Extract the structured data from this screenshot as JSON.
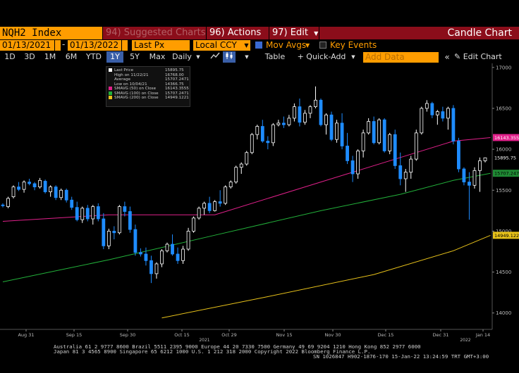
{
  "toolbar": {
    "ticker": "NQH2 Index",
    "suggested_charts": "94) Suggested Charts",
    "actions": "96) Actions",
    "edit": "97) Edit",
    "title": "Candle Chart"
  },
  "controls": {
    "date_from": "01/13/2021",
    "date_to": "01/13/2022",
    "price_field": "Last Px",
    "currency": "Local CCY",
    "mov_avgs_label": "Mov Avgs",
    "key_events_label": "Key Events"
  },
  "periods": [
    "1D",
    "3D",
    "1M",
    "6M",
    "YTD",
    "1Y",
    "5Y",
    "Max"
  ],
  "selected_period": "1Y",
  "frequency": "Daily",
  "table_label": "Table",
  "quick_add_label": "+ Quick-Add",
  "add_data_placeholder": "Add Data",
  "edit_chart_label": "Edit Chart",
  "legend": [
    {
      "label": "Last Price",
      "value": "15895.75",
      "color": "#ffffff"
    },
    {
      "label": "High on 11/22/21",
      "value": "16768.00",
      "color": ""
    },
    {
      "label": "Average",
      "value": "15707.2471",
      "color": ""
    },
    {
      "label": "Low on 10/04/21",
      "value": "14366.75",
      "color": ""
    },
    {
      "label": "SMAVG (50)  on Close",
      "value": "16143.3555",
      "color": "#e0208a"
    },
    {
      "label": "SMAVG (100) on Close",
      "value": "15707.2471",
      "color": "#22b03a"
    },
    {
      "label": "SMAVG (200) on Close",
      "value": "14949.1221",
      "color": "#e8c21a"
    }
  ],
  "chart_data": {
    "type": "candlestick",
    "y_range": [
      13800,
      17050
    ],
    "y_ticks": [
      14000,
      14500,
      15000,
      15500,
      16000,
      16500,
      17000
    ],
    "x_labels": [
      "Aug 31",
      "Sep 15",
      "Sep 30",
      "Oct 15",
      "Oct 29",
      "Nov 15",
      "Nov 30",
      "Dec 15",
      "Dec 31",
      "Jan 14"
    ],
    "year_labels": [
      {
        "after": "Oct 15",
        "text": "2021"
      },
      {
        "after": "Dec 31",
        "text": "2022"
      }
    ],
    "up_color": "#ffffff",
    "down_color": "#1e8cff",
    "candles": [
      [
        15320,
        15340,
        15290,
        15310
      ],
      [
        15300,
        15420,
        15280,
        15400
      ],
      [
        15420,
        15560,
        15400,
        15540
      ],
      [
        15540,
        15600,
        15490,
        15510
      ],
      [
        15510,
        15620,
        15470,
        15600
      ],
      [
        15600,
        15640,
        15560,
        15580
      ],
      [
        15580,
        15600,
        15500,
        15540
      ],
      [
        15540,
        15650,
        15520,
        15620
      ],
      [
        15610,
        15630,
        15460,
        15480
      ],
      [
        15480,
        15560,
        15420,
        15540
      ],
      [
        15540,
        15560,
        15380,
        15410
      ],
      [
        15410,
        15520,
        15380,
        15500
      ],
      [
        15500,
        15520,
        15350,
        15380
      ],
      [
        15380,
        15420,
        15260,
        15290
      ],
      [
        15290,
        15360,
        15120,
        15140
      ],
      [
        15140,
        15300,
        15100,
        15280
      ],
      [
        15280,
        15320,
        15120,
        15150
      ],
      [
        15150,
        15320,
        15080,
        15300
      ],
      [
        15300,
        15340,
        15120,
        15150
      ],
      [
        15150,
        15220,
        14780,
        14820
      ],
      [
        14820,
        15030,
        14780,
        15000
      ],
      [
        15000,
        15060,
        14900,
        14980
      ],
      [
        14980,
        15320,
        14960,
        15300
      ],
      [
        15300,
        15360,
        15180,
        15240
      ],
      [
        15240,
        15300,
        14980,
        15020
      ],
      [
        15020,
        15080,
        14700,
        14740
      ],
      [
        14740,
        14790,
        14690,
        14720
      ],
      [
        14720,
        14800,
        14580,
        14640
      ],
      [
        14640,
        14700,
        14366,
        14480
      ],
      [
        14480,
        14620,
        14420,
        14600
      ],
      [
        14600,
        14780,
        14560,
        14760
      ],
      [
        14760,
        14860,
        14740,
        14840
      ],
      [
        14840,
        14960,
        14700,
        14720
      ],
      [
        14720,
        14800,
        14600,
        14640
      ],
      [
        14640,
        14820,
        14600,
        14780
      ],
      [
        14780,
        15040,
        14760,
        15000
      ],
      [
        15000,
        15180,
        14980,
        15160
      ],
      [
        15160,
        15300,
        15140,
        15280
      ],
      [
        15280,
        15360,
        15200,
        15340
      ],
      [
        15340,
        15420,
        15220,
        15250
      ],
      [
        15250,
        15380,
        15240,
        15360
      ],
      [
        15360,
        15500,
        15300,
        15340
      ],
      [
        15340,
        15560,
        15320,
        15540
      ],
      [
        15540,
        15620,
        15520,
        15600
      ],
      [
        15600,
        15800,
        15580,
        15780
      ],
      [
        15780,
        15840,
        15700,
        15820
      ],
      [
        15820,
        15980,
        15800,
        15960
      ],
      [
        15960,
        16200,
        15940,
        16180
      ],
      [
        16180,
        16300,
        16120,
        16280
      ],
      [
        16280,
        16360,
        16080,
        16100
      ],
      [
        16100,
        16160,
        16000,
        16080
      ],
      [
        16080,
        16320,
        16040,
        16300
      ],
      [
        16300,
        16360,
        16280,
        16320
      ],
      [
        16320,
        16400,
        16260,
        16300
      ],
      [
        16300,
        16420,
        16280,
        16380
      ],
      [
        16380,
        16560,
        16340,
        16520
      ],
      [
        16520,
        16620,
        16280,
        16330
      ],
      [
        16330,
        16480,
        16300,
        16440
      ],
      [
        16440,
        16540,
        16380,
        16520
      ],
      [
        16520,
        16768,
        16500,
        16600
      ],
      [
        16600,
        16620,
        16280,
        16300
      ],
      [
        16300,
        16440,
        16180,
        16420
      ],
      [
        16420,
        16460,
        16100,
        16120
      ],
      [
        16120,
        16360,
        16080,
        16320
      ],
      [
        16320,
        16440,
        16000,
        16040
      ],
      [
        16040,
        16200,
        15820,
        15860
      ],
      [
        15860,
        15920,
        15600,
        15700
      ],
      [
        15700,
        16000,
        15640,
        15980
      ],
      [
        15980,
        16240,
        15900,
        16200
      ],
      [
        16200,
        16380,
        16180,
        16340
      ],
      [
        16340,
        16400,
        16060,
        16080
      ],
      [
        16080,
        16380,
        16060,
        16360
      ],
      [
        16360,
        16380,
        15960,
        15980
      ],
      [
        15980,
        16200,
        15940,
        16180
      ],
      [
        16180,
        16240,
        15760,
        15800
      ],
      [
        15800,
        15960,
        15560,
        15640
      ],
      [
        15640,
        15760,
        15480,
        15720
      ],
      [
        15720,
        15920,
        15640,
        15880
      ],
      [
        15880,
        16240,
        15860,
        16200
      ],
      [
        16200,
        16520,
        16180,
        16500
      ],
      [
        16500,
        16600,
        16460,
        16560
      ],
      [
        16560,
        16580,
        16380,
        16420
      ],
      [
        16420,
        16480,
        16300,
        16460
      ],
      [
        16460,
        16520,
        16340,
        16380
      ],
      [
        16380,
        16520,
        16240,
        16500
      ],
      [
        16500,
        16540,
        16060,
        16100
      ],
      [
        16100,
        16140,
        15720,
        15760
      ],
      [
        15760,
        15780,
        15560,
        15600
      ],
      [
        15600,
        15720,
        15140,
        15560
      ],
      [
        15560,
        15780,
        15520,
        15740
      ],
      [
        15740,
        15900,
        15480,
        15860
      ],
      [
        15860,
        15900,
        15840,
        15896
      ]
    ],
    "ma50": [
      [
        0,
        15120
      ],
      [
        20,
        15200
      ],
      [
        40,
        15200
      ],
      [
        60,
        15600
      ],
      [
        75,
        15900
      ],
      [
        85,
        16100
      ],
      [
        92,
        16143
      ]
    ],
    "ma100": [
      [
        0,
        14380
      ],
      [
        20,
        14650
      ],
      [
        40,
        14950
      ],
      [
        60,
        15250
      ],
      [
        75,
        15450
      ],
      [
        85,
        15620
      ],
      [
        92,
        15707
      ]
    ],
    "ma200": [
      [
        30,
        13940
      ],
      [
        50,
        14200
      ],
      [
        70,
        14470
      ],
      [
        85,
        14760
      ],
      [
        92,
        14949
      ]
    ],
    "last_price_label": "15895.75",
    "ma50_label": "16143.3555",
    "ma100_label": "15707.2471",
    "ma200_label": "14949.1221"
  },
  "footer": {
    "line1": "Australia 61 2 9777 8600 Brazil 5511 2395 9000 Europe 44 20 7330 7500 Germany 49 69 9204 1210 Hong Kong 852 2977 6000",
    "line2": "Japan 81 3 4565 8900      Singapore 65 6212 1000      U.S. 1 212 318 2000        Copyright 2022 Bloomberg Finance L.P.",
    "line3": "SN 1026847 H902-1876-170 15-Jan-22 13:24:59 TRT  GMT+3:00"
  }
}
